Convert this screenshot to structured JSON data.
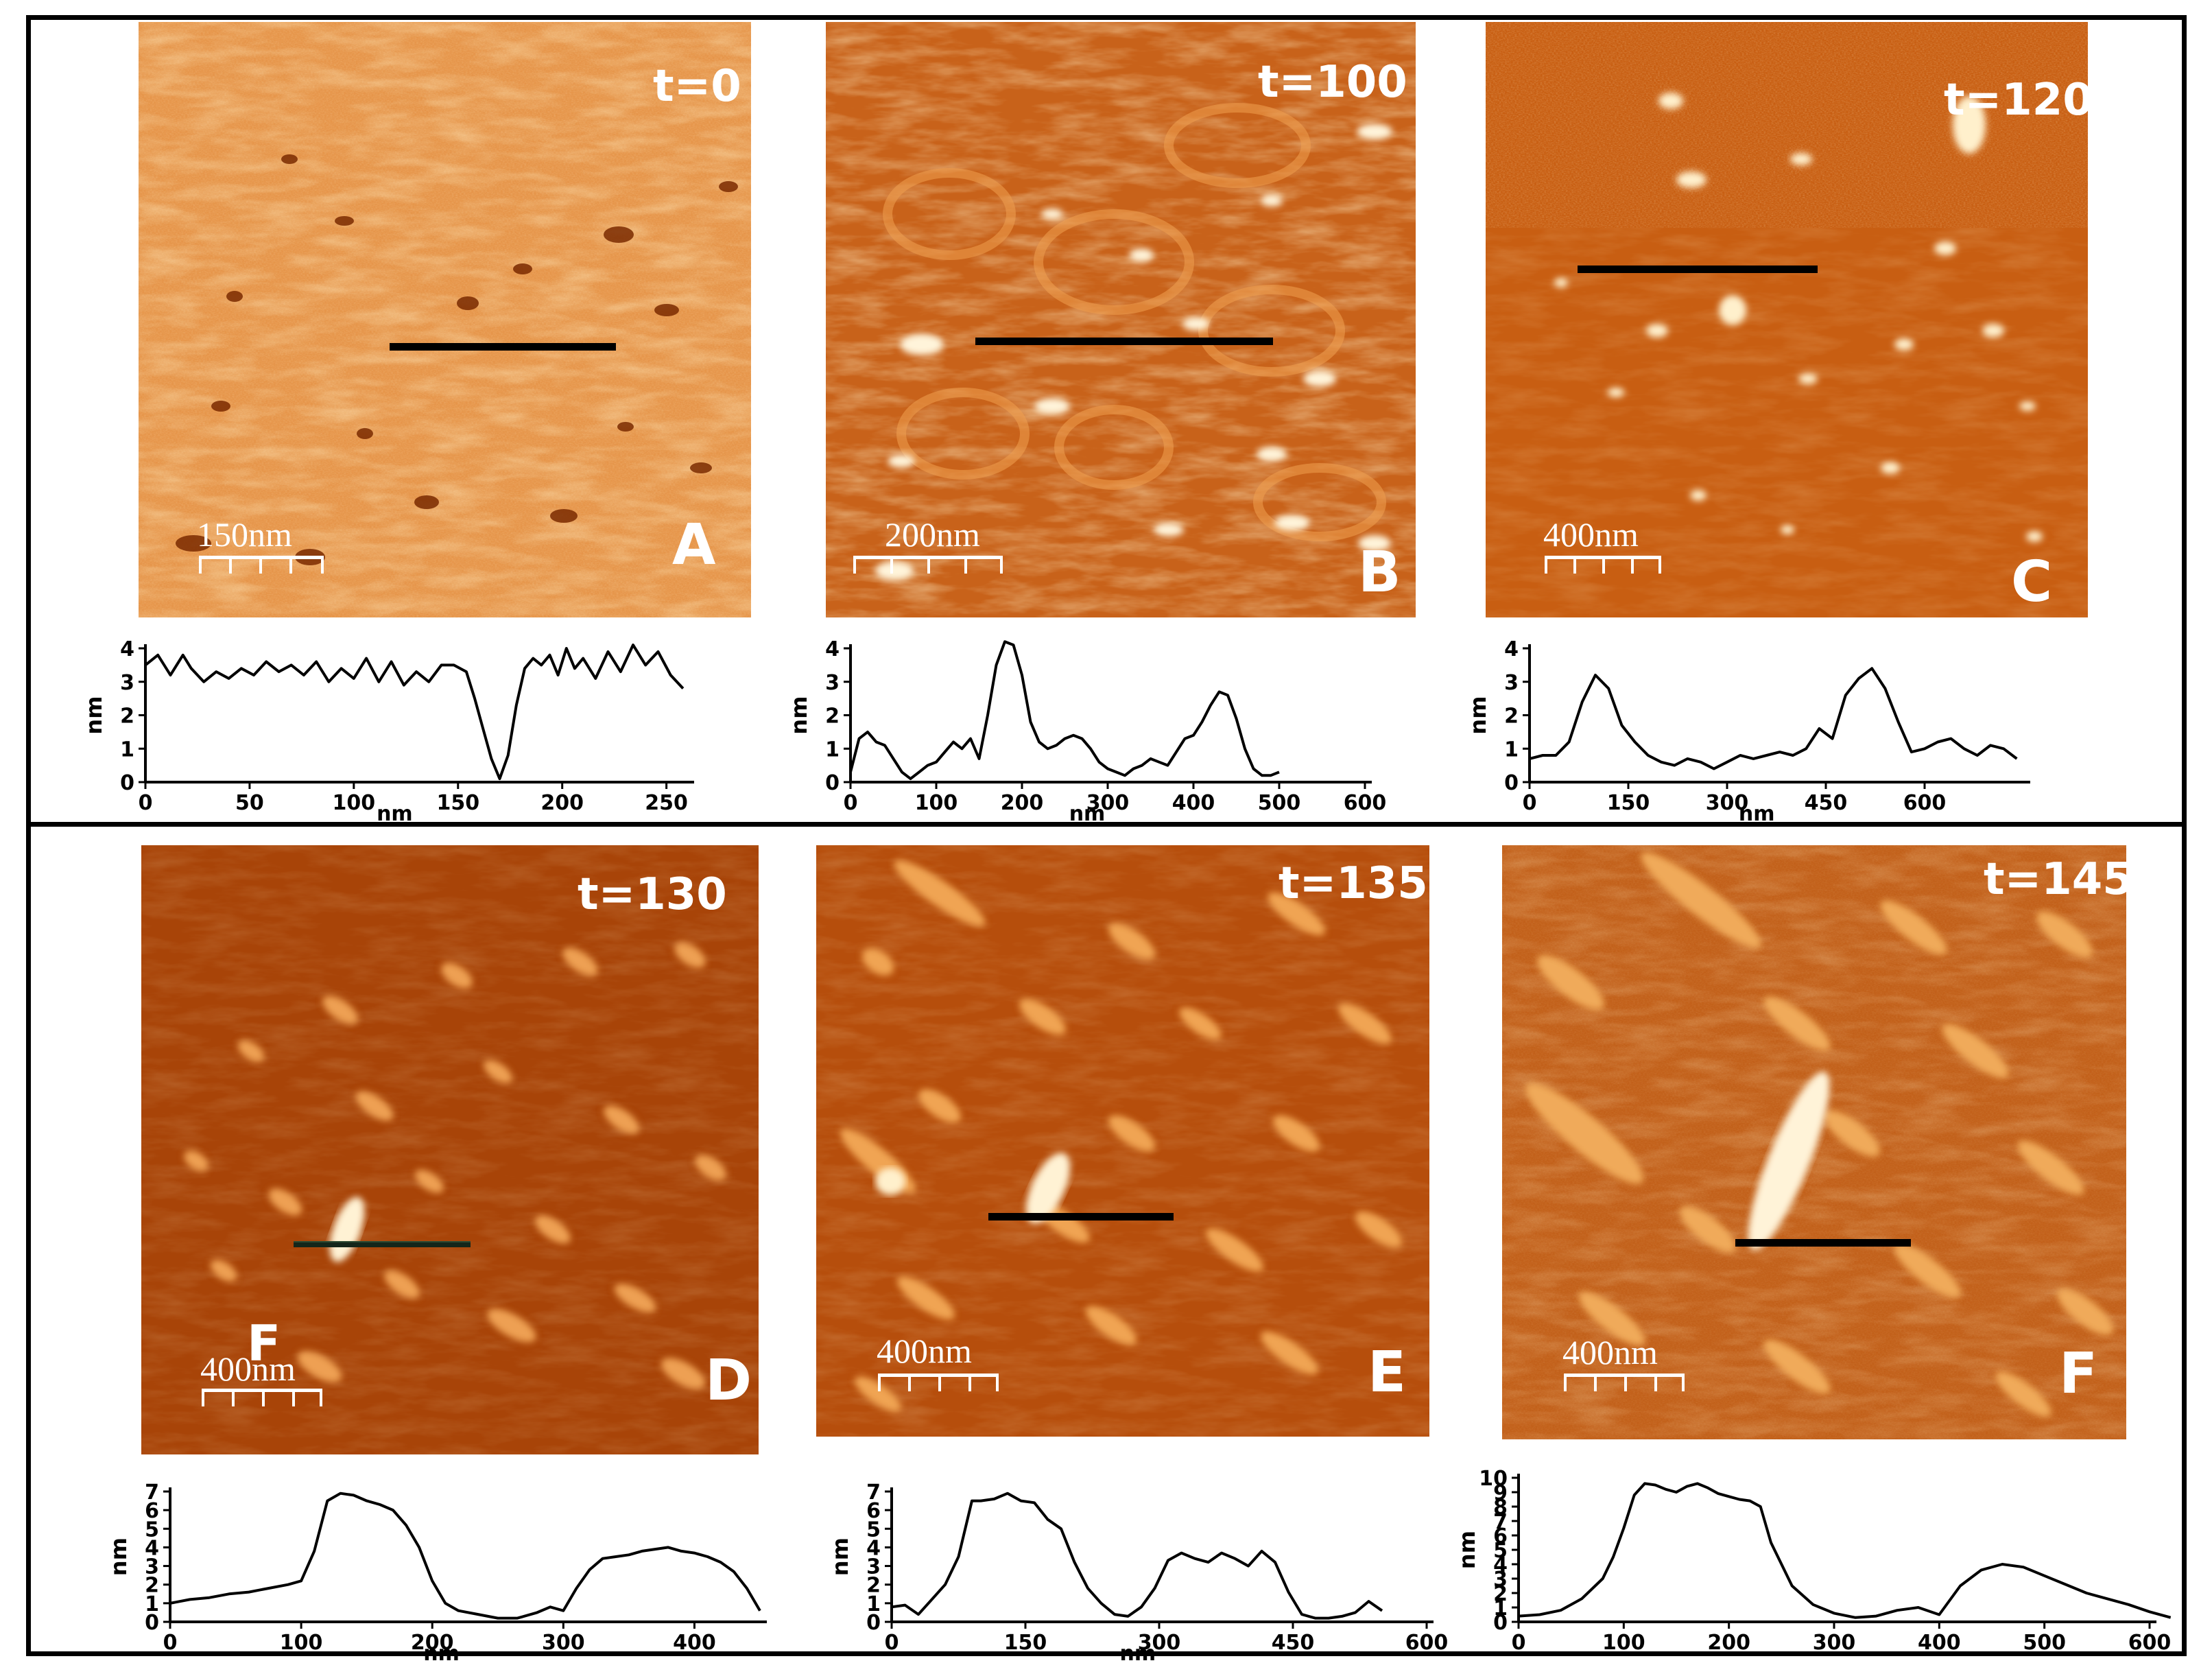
{
  "panels": [
    {
      "id": "A",
      "time": "t=0",
      "scale": "150nm",
      "letter": "A",
      "overlay": ""
    },
    {
      "id": "B",
      "time": "t=100",
      "scale": "200nm",
      "letter": "B",
      "overlay": ""
    },
    {
      "id": "C",
      "time": "t=120",
      "scale": "400nm",
      "letter": "C",
      "overlay": ""
    },
    {
      "id": "D",
      "time": "t=130",
      "scale": "400nm",
      "letter": "D",
      "overlay": "F"
    },
    {
      "id": "E",
      "time": "t=135",
      "scale": "400nm",
      "letter": "E",
      "overlay": ""
    },
    {
      "id": "F",
      "time": "t=145",
      "scale": "400nm",
      "letter": "F",
      "overlay": ""
    }
  ],
  "colors": {
    "afm_dark": "#8a3400",
    "afm_mid": "#c45c10",
    "afm_light": "#f0b060",
    "afm_bright": "#fff3d8"
  },
  "chart_data": [
    {
      "type": "line",
      "panel": "A",
      "xlabel": "nm",
      "ylabel": "nm",
      "xlim": [
        0,
        260
      ],
      "ylim": [
        0,
        4
      ],
      "xticks": [
        "0",
        "50",
        "100",
        "150",
        "200",
        "250"
      ],
      "yticks": [
        "0",
        "1",
        "2",
        "3",
        "4"
      ],
      "x": [
        0,
        6,
        12,
        18,
        22,
        28,
        34,
        40,
        46,
        52,
        58,
        64,
        70,
        76,
        82,
        88,
        94,
        100,
        106,
        112,
        118,
        124,
        130,
        136,
        142,
        148,
        154,
        158,
        162,
        166,
        170,
        174,
        178,
        182,
        186,
        190,
        194,
        198,
        202,
        206,
        210,
        216,
        222,
        228,
        234,
        240,
        246,
        252,
        258
      ],
      "y": [
        3.5,
        3.8,
        3.2,
        3.8,
        3.4,
        3.0,
        3.3,
        3.1,
        3.4,
        3.2,
        3.6,
        3.3,
        3.5,
        3.2,
        3.6,
        3.0,
        3.4,
        3.1,
        3.7,
        3.0,
        3.6,
        2.9,
        3.3,
        3.0,
        3.5,
        3.5,
        3.3,
        2.5,
        1.6,
        0.7,
        0.1,
        0.8,
        2.3,
        3.4,
        3.7,
        3.5,
        3.8,
        3.2,
        4.0,
        3.4,
        3.7,
        3.1,
        3.9,
        3.3,
        4.1,
        3.5,
        3.9,
        3.2,
        2.8
      ]
    },
    {
      "type": "line",
      "panel": "B",
      "xlabel": "nm",
      "ylabel": "nm",
      "xlim": [
        0,
        600
      ],
      "ylim": [
        0,
        4
      ],
      "xticks": [
        "0",
        "100",
        "200",
        "300",
        "400",
        "500",
        "600"
      ],
      "yticks": [
        "0",
        "1",
        "2",
        "3",
        "4"
      ],
      "x": [
        0,
        10,
        20,
        30,
        40,
        50,
        60,
        70,
        80,
        90,
        100,
        110,
        120,
        130,
        140,
        150,
        160,
        170,
        180,
        190,
        200,
        210,
        220,
        230,
        240,
        250,
        260,
        270,
        280,
        290,
        300,
        310,
        320,
        330,
        340,
        350,
        360,
        370,
        380,
        390,
        400,
        410,
        420,
        430,
        440,
        450,
        460,
        470,
        480,
        490,
        500
      ],
      "y": [
        0.3,
        1.3,
        1.5,
        1.2,
        1.1,
        0.7,
        0.3,
        0.1,
        0.3,
        0.5,
        0.6,
        0.9,
        1.2,
        1.0,
        1.3,
        0.7,
        2.0,
        3.5,
        4.2,
        4.1,
        3.2,
        1.8,
        1.2,
        1.0,
        1.1,
        1.3,
        1.4,
        1.3,
        1.0,
        0.6,
        0.4,
        0.3,
        0.2,
        0.4,
        0.5,
        0.7,
        0.6,
        0.5,
        0.9,
        1.3,
        1.4,
        1.8,
        2.3,
        2.7,
        2.6,
        1.9,
        1.0,
        0.4,
        0.2,
        0.2,
        0.3
      ]
    },
    {
      "type": "line",
      "panel": "C",
      "xlabel": "nm",
      "ylabel": "nm",
      "xlim": [
        0,
        750
      ],
      "ylim": [
        0,
        4
      ],
      "xticks": [
        "0",
        "150",
        "300",
        "450",
        "600"
      ],
      "yticks": [
        "0",
        "1",
        "2",
        "3",
        "4"
      ],
      "x": [
        0,
        20,
        40,
        60,
        80,
        100,
        120,
        140,
        160,
        180,
        200,
        220,
        240,
        260,
        280,
        300,
        320,
        340,
        360,
        380,
        400,
        420,
        440,
        460,
        480,
        500,
        520,
        540,
        560,
        580,
        600,
        620,
        640,
        660,
        680,
        700,
        720,
        740
      ],
      "y": [
        0.7,
        0.8,
        0.8,
        1.2,
        2.4,
        3.2,
        2.8,
        1.7,
        1.2,
        0.8,
        0.6,
        0.5,
        0.7,
        0.6,
        0.4,
        0.6,
        0.8,
        0.7,
        0.8,
        0.9,
        0.8,
        1.0,
        1.6,
        1.3,
        2.6,
        3.1,
        3.4,
        2.8,
        1.8,
        0.9,
        1.0,
        1.2,
        1.3,
        1.0,
        0.8,
        1.1,
        1.0,
        0.7
      ]
    },
    {
      "type": "line",
      "panel": "D",
      "xlabel": "nm",
      "ylabel": "nm",
      "xlim": [
        0,
        450
      ],
      "ylim": [
        0,
        7
      ],
      "xticks": [
        "0",
        "100",
        "200",
        "300",
        "400"
      ],
      "yticks": [
        "0",
        "1",
        "2",
        "3",
        "4",
        "5",
        "6",
        "7"
      ],
      "x": [
        0,
        15,
        30,
        45,
        60,
        75,
        90,
        100,
        110,
        120,
        130,
        140,
        150,
        160,
        170,
        180,
        190,
        200,
        210,
        220,
        235,
        250,
        265,
        280,
        290,
        300,
        310,
        320,
        330,
        340,
        350,
        360,
        370,
        380,
        390,
        400,
        410,
        420,
        430,
        440,
        450
      ],
      "y": [
        1.0,
        1.2,
        1.3,
        1.5,
        1.6,
        1.8,
        2.0,
        2.2,
        3.8,
        6.5,
        6.9,
        6.8,
        6.5,
        6.3,
        6.0,
        5.2,
        4.0,
        2.2,
        1.0,
        0.6,
        0.4,
        0.2,
        0.2,
        0.5,
        0.8,
        0.6,
        1.8,
        2.8,
        3.4,
        3.5,
        3.6,
        3.8,
        3.9,
        4.0,
        3.8,
        3.7,
        3.5,
        3.2,
        2.7,
        1.8,
        0.6
      ]
    },
    {
      "type": "line",
      "panel": "E",
      "xlabel": "nm",
      "ylabel": "nm",
      "xlim": [
        0,
        600
      ],
      "ylim": [
        0,
        7
      ],
      "xticks": [
        "0",
        "150",
        "300",
        "450",
        "600"
      ],
      "yticks": [
        "0",
        "1",
        "2",
        "3",
        "4",
        "5",
        "6",
        "7"
      ],
      "x": [
        0,
        15,
        30,
        45,
        60,
        75,
        90,
        100,
        115,
        130,
        145,
        160,
        175,
        190,
        205,
        220,
        235,
        250,
        265,
        280,
        295,
        310,
        325,
        340,
        355,
        370,
        385,
        400,
        415,
        430,
        445,
        460,
        475,
        490,
        505,
        520,
        535,
        550
      ],
      "y": [
        0.8,
        0.9,
        0.4,
        1.2,
        2.0,
        3.5,
        6.5,
        6.5,
        6.6,
        6.9,
        6.5,
        6.4,
        5.5,
        5.0,
        3.2,
        1.8,
        1.0,
        0.4,
        0.3,
        0.8,
        1.8,
        3.3,
        3.7,
        3.4,
        3.2,
        3.7,
        3.4,
        3.0,
        3.8,
        3.2,
        1.6,
        0.4,
        0.2,
        0.2,
        0.3,
        0.5,
        1.1,
        0.6
      ]
    },
    {
      "type": "line",
      "panel": "F",
      "xlabel": "",
      "ylabel": "nm",
      "xlim": [
        0,
        600
      ],
      "ylim": [
        0,
        10
      ],
      "xticks": [
        "0",
        "100",
        "200",
        "300",
        "400",
        "500",
        "600"
      ],
      "yticks": [
        "0",
        "1",
        "2",
        "3",
        "4",
        "5",
        "6",
        "7",
        "8",
        "9",
        "10"
      ],
      "x": [
        0,
        20,
        40,
        60,
        80,
        90,
        100,
        110,
        120,
        130,
        140,
        150,
        160,
        170,
        180,
        190,
        200,
        210,
        220,
        230,
        240,
        260,
        280,
        300,
        320,
        340,
        360,
        380,
        400,
        420,
        440,
        460,
        480,
        500,
        520,
        540,
        560,
        580,
        600,
        620
      ],
      "y": [
        0.4,
        0.5,
        0.8,
        1.6,
        3.0,
        4.5,
        6.5,
        8.8,
        9.6,
        9.5,
        9.2,
        9.0,
        9.4,
        9.6,
        9.3,
        8.9,
        8.7,
        8.5,
        8.4,
        8.0,
        5.5,
        2.5,
        1.2,
        0.6,
        0.3,
        0.4,
        0.8,
        1.0,
        0.5,
        2.5,
        3.6,
        4.0,
        3.8,
        3.2,
        2.6,
        2.0,
        1.6,
        1.2,
        0.7,
        0.3
      ]
    }
  ]
}
